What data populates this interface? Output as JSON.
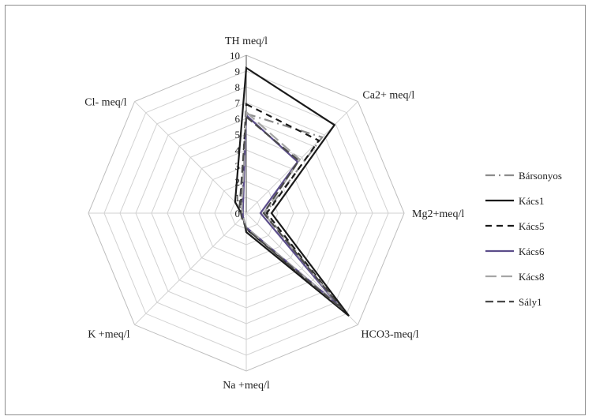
{
  "chart_data": {
    "type": "radar",
    "title": "",
    "axes": [
      "TH meq/l",
      "Ca2+ meq/l",
      "Mg2+meq/l",
      "HCO3-meq/l",
      "Na +meq/l",
      "K +meq/l",
      "Cl- meq/l"
    ],
    "tick_labels": [
      "0",
      "1",
      "2",
      "3",
      "4",
      "5",
      "6",
      "7",
      "8",
      "9",
      "10"
    ],
    "range": [
      0,
      10
    ],
    "grid": true,
    "legend_position": "right",
    "series": [
      {
        "name": "Bársonyos",
        "color": "#8c8c8c",
        "dash": "long-dash-dot",
        "values": [
          6.3,
          6.8,
          1.2,
          8.5,
          1.0,
          0.3,
          0.4
        ]
      },
      {
        "name": "Kács1",
        "color": "#1a1a1a",
        "dash": "solid",
        "values": [
          9.2,
          7.9,
          1.6,
          9.2,
          1.2,
          0.3,
          1.0
        ]
      },
      {
        "name": "Kács5",
        "color": "#1a1a1a",
        "dash": "dashed",
        "values": [
          6.9,
          6.5,
          1.3,
          8.6,
          1.0,
          0.3,
          0.5
        ]
      },
      {
        "name": "Kács6",
        "color": "#5b4d8a",
        "dash": "solid",
        "values": [
          6.2,
          4.6,
          0.9,
          8.2,
          0.9,
          0.3,
          0.3
        ]
      },
      {
        "name": "Kács8",
        "color": "#a6a6a6",
        "dash": "long-dash",
        "values": [
          6.4,
          4.8,
          1.1,
          8.4,
          0.9,
          0.3,
          0.4
        ]
      },
      {
        "name": "Sály1",
        "color": "#4a4a4a",
        "dash": "dash",
        "values": [
          6.1,
          4.7,
          1.1,
          8.6,
          1.0,
          0.4,
          0.6
        ]
      }
    ]
  }
}
